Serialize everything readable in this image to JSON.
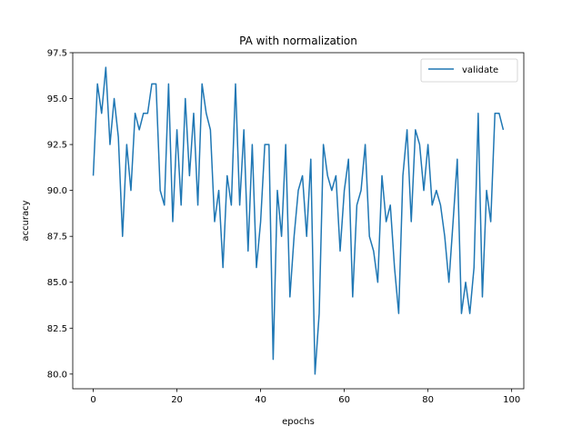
{
  "chart_data": {
    "type": "line",
    "title": "PA with normalization",
    "xlabel": "epochs",
    "ylabel": "accuracy",
    "xlim": [
      -4.9,
      102.9
    ],
    "ylim": [
      79.2,
      97.5
    ],
    "xticks": [
      0,
      20,
      40,
      60,
      80,
      100
    ],
    "yticks": [
      80.0,
      82.5,
      85.0,
      87.5,
      90.0,
      92.5,
      95.0,
      97.5
    ],
    "xtick_labels": [
      "0",
      "20",
      "40",
      "60",
      "80",
      "100"
    ],
    "ytick_labels": [
      "80.0",
      "82.5",
      "85.0",
      "87.5",
      "90.0",
      "92.5",
      "95.0",
      "97.5"
    ],
    "grid": false,
    "legend_position": "top-right",
    "series": [
      {
        "name": "validate",
        "color": "#1f77b4",
        "x": [
          0,
          1,
          2,
          3,
          4,
          5,
          6,
          7,
          8,
          9,
          10,
          11,
          12,
          13,
          14,
          15,
          16,
          17,
          18,
          19,
          20,
          21,
          22,
          23,
          24,
          25,
          26,
          27,
          28,
          29,
          30,
          31,
          32,
          33,
          34,
          35,
          36,
          37,
          38,
          39,
          40,
          41,
          42,
          43,
          44,
          45,
          46,
          47,
          48,
          49,
          50,
          51,
          52,
          53,
          54,
          55,
          56,
          57,
          58,
          59,
          60,
          61,
          62,
          63,
          64,
          65,
          66,
          67,
          68,
          69,
          70,
          71,
          72,
          73,
          74,
          75,
          76,
          77,
          78,
          79,
          80,
          81,
          82,
          83,
          84,
          85,
          86,
          87,
          88,
          89,
          90,
          91,
          92,
          93,
          94,
          95,
          96,
          97,
          98
        ],
        "y": [
          90.8,
          95.8,
          94.2,
          96.7,
          92.5,
          95.0,
          92.9,
          87.5,
          92.5,
          90.0,
          94.2,
          93.3,
          94.2,
          94.2,
          95.8,
          95.8,
          90.0,
          89.2,
          95.8,
          88.3,
          93.3,
          89.2,
          95.0,
          90.8,
          94.2,
          89.2,
          95.8,
          94.2,
          93.3,
          88.3,
          90.0,
          85.8,
          90.8,
          89.2,
          95.8,
          89.2,
          93.3,
          86.7,
          92.5,
          85.8,
          88.3,
          92.5,
          92.5,
          80.8,
          90.0,
          87.5,
          92.5,
          84.2,
          87.5,
          90.0,
          90.8,
          87.5,
          91.7,
          80.0,
          83.3,
          92.5,
          90.8,
          90.0,
          90.8,
          86.7,
          90.0,
          91.7,
          84.2,
          89.2,
          90.0,
          92.5,
          87.5,
          86.7,
          85.0,
          90.8,
          88.3,
          89.2,
          85.8,
          83.3,
          90.8,
          93.3,
          88.3,
          93.3,
          92.5,
          90.0,
          92.5,
          89.2,
          90.0,
          89.2,
          87.5,
          85.0,
          88.3,
          91.7,
          83.3,
          85.0,
          83.3,
          85.8,
          94.2,
          84.2,
          90.0,
          88.3,
          94.2,
          94.2,
          93.3
        ]
      }
    ]
  }
}
